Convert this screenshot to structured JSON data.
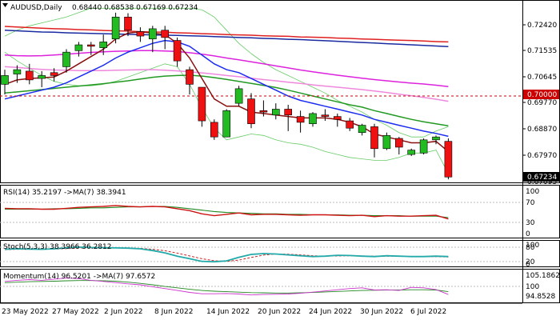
{
  "colors": {
    "up": "#22bb22",
    "down": "#ee1111",
    "ma_red": "#e02020",
    "ma_blue": "#1a2aa0",
    "ma_magenta": "#dd22dd",
    "ma_pink": "#ee88dd",
    "ma_green": "#229922",
    "ma_dkred": "#8a1010",
    "ma_blue2": "#1c2cf0",
    "band": "#66cc66",
    "level_line": "#cc0000",
    "rsi": "#cc1111",
    "rsi_ma": "#228822",
    "stoch_k": "#22aaaa",
    "stoch_d": "#cc2222",
    "mom": "#cc33cc",
    "mom_ma": "#228822"
  },
  "header": {
    "symbol": "AUDUSD,Daily",
    "ohlc": "0.68440 0.68538 0.67169 0.67234"
  },
  "price_axis": {
    "ticks": [
      "0.72420",
      "0.71535",
      "0.70645",
      "0.69770",
      "0.68870",
      "0.67970"
    ],
    "partial_tick": "0.67095",
    "level_label": "0.70000",
    "last_label": "0.67234"
  },
  "rsi_panel": {
    "title": "RSI(14) 35.2197  ->MA(7) 38.3941",
    "ticks": [
      "100",
      "70",
      "30",
      "0"
    ]
  },
  "stoch_panel": {
    "title": "Stoch(5,3,3) 38.3966 36.2812",
    "ticks": [
      "100",
      "80",
      "20",
      "0"
    ]
  },
  "mom_panel": {
    "title": "Momentum(14) 96.5201  ->MA(7) 97.6572",
    "ticks": [
      "105.1862",
      "100",
      "94.8528"
    ]
  },
  "x_axis": {
    "labels": [
      "23 May 2022",
      "27 May 2022",
      "2 Jun 2022",
      "8 Jun 2022",
      "14 Jun 2022",
      "20 Jun 2022",
      "24 Jun 2022",
      "30 Jun 2022",
      "6 Jul 2022"
    ]
  },
  "chart_data": {
    "type": "candlestick",
    "title": "AUDUSD,Daily",
    "ylim": [
      0.671,
      0.729
    ],
    "level": 0.7,
    "candles": [
      {
        "o": 0.704,
        "h": 0.709,
        "l": 0.7005,
        "c": 0.707
      },
      {
        "o": 0.7075,
        "h": 0.7105,
        "l": 0.7045,
        "c": 0.709
      },
      {
        "o": 0.7085,
        "h": 0.711,
        "l": 0.704,
        "c": 0.7055
      },
      {
        "o": 0.706,
        "h": 0.7085,
        "l": 0.703,
        "c": 0.707
      },
      {
        "o": 0.708,
        "h": 0.7095,
        "l": 0.705,
        "c": 0.707
      },
      {
        "o": 0.71,
        "h": 0.716,
        "l": 0.708,
        "c": 0.715
      },
      {
        "o": 0.7155,
        "h": 0.7185,
        "l": 0.7135,
        "c": 0.7175
      },
      {
        "o": 0.7175,
        "h": 0.7185,
        "l": 0.714,
        "c": 0.717
      },
      {
        "o": 0.7165,
        "h": 0.721,
        "l": 0.714,
        "c": 0.7185
      },
      {
        "o": 0.7195,
        "h": 0.7285,
        "l": 0.718,
        "c": 0.727
      },
      {
        "o": 0.727,
        "h": 0.7283,
        "l": 0.7205,
        "c": 0.7225
      },
      {
        "o": 0.722,
        "h": 0.7235,
        "l": 0.7185,
        "c": 0.7205
      },
      {
        "o": 0.7195,
        "h": 0.724,
        "l": 0.715,
        "c": 0.723
      },
      {
        "o": 0.7225,
        "h": 0.724,
        "l": 0.716,
        "c": 0.72
      },
      {
        "o": 0.719,
        "h": 0.72,
        "l": 0.71,
        "c": 0.712
      },
      {
        "o": 0.709,
        "h": 0.71,
        "l": 0.7005,
        "c": 0.704
      },
      {
        "o": 0.703,
        "h": 0.703,
        "l": 0.6895,
        "c": 0.6915
      },
      {
        "o": 0.691,
        "h": 0.692,
        "l": 0.685,
        "c": 0.686
      },
      {
        "o": 0.686,
        "h": 0.6955,
        "l": 0.686,
        "c": 0.695
      },
      {
        "o": 0.6975,
        "h": 0.7035,
        "l": 0.6965,
        "c": 0.7025
      },
      {
        "o": 0.699,
        "h": 0.701,
        "l": 0.689,
        "c": 0.6905
      },
      {
        "o": 0.695,
        "h": 0.6985,
        "l": 0.693,
        "c": 0.6945
      },
      {
        "o": 0.6935,
        "h": 0.6975,
        "l": 0.692,
        "c": 0.6955
      },
      {
        "o": 0.6955,
        "h": 0.697,
        "l": 0.688,
        "c": 0.6935
      },
      {
        "o": 0.693,
        "h": 0.695,
        "l": 0.6875,
        "c": 0.691
      },
      {
        "o": 0.6905,
        "h": 0.6945,
        "l": 0.6895,
        "c": 0.694
      },
      {
        "o": 0.6935,
        "h": 0.6955,
        "l": 0.6915,
        "c": 0.693
      },
      {
        "o": 0.693,
        "h": 0.694,
        "l": 0.6895,
        "c": 0.692
      },
      {
        "o": 0.6915,
        "h": 0.6925,
        "l": 0.688,
        "c": 0.689
      },
      {
        "o": 0.6875,
        "h": 0.6905,
        "l": 0.6865,
        "c": 0.69
      },
      {
        "o": 0.6895,
        "h": 0.6905,
        "l": 0.679,
        "c": 0.682
      },
      {
        "o": 0.682,
        "h": 0.6875,
        "l": 0.6815,
        "c": 0.6865
      },
      {
        "o": 0.6855,
        "h": 0.686,
        "l": 0.68,
        "c": 0.6825
      },
      {
        "o": 0.68,
        "h": 0.682,
        "l": 0.6795,
        "c": 0.6815
      },
      {
        "o": 0.6805,
        "h": 0.6855,
        "l": 0.68,
        "c": 0.685
      },
      {
        "o": 0.685,
        "h": 0.6865,
        "l": 0.6835,
        "c": 0.686
      },
      {
        "o": 0.6845,
        "h": 0.6855,
        "l": 0.6715,
        "c": 0.6723
      }
    ],
    "moving_averages": [
      {
        "color_key": "ma_red",
        "values": [
          0.7238,
          0.7236,
          0.7234,
          0.7232,
          0.723,
          0.7229,
          0.7227,
          0.7226,
          0.7224,
          0.7223,
          0.7222,
          0.722,
          0.7219,
          0.7218,
          0.7216,
          0.7215,
          0.7213,
          0.7212,
          0.721,
          0.7209,
          0.7208,
          0.7206,
          0.7205,
          0.7204,
          0.7202,
          0.7201,
          0.72,
          0.7198,
          0.7197,
          0.7195,
          0.7194,
          0.7192,
          0.7191,
          0.719,
          0.7188,
          0.7186,
          0.7185
        ]
      },
      {
        "color_key": "ma_blue",
        "values": [
          0.7225,
          0.7223,
          0.7221,
          0.7219,
          0.7218,
          0.7216,
          0.7215,
          0.7214,
          0.7213,
          0.7212,
          0.7211,
          0.721,
          0.7209,
          0.7208,
          0.7207,
          0.7206,
          0.7205,
          0.7203,
          0.7202,
          0.72,
          0.7199,
          0.7197,
          0.7196,
          0.7194,
          0.7193,
          0.7191,
          0.7189,
          0.7187,
          0.7185,
          0.7183,
          0.7181,
          0.7179,
          0.7177,
          0.7175,
          0.7173,
          0.7171,
          0.7169
        ]
      },
      {
        "color_key": "ma_magenta",
        "values": [
          0.714,
          0.7138,
          0.7137,
          0.7138,
          0.714,
          0.7143,
          0.7146,
          0.7149,
          0.7151,
          0.7153,
          0.7154,
          0.7155,
          0.7155,
          0.7154,
          0.7152,
          0.7148,
          0.7143,
          0.7137,
          0.713,
          0.7124,
          0.7117,
          0.711,
          0.7103,
          0.7096,
          0.7089,
          0.7083,
          0.7077,
          0.7071,
          0.7066,
          0.7061,
          0.7056,
          0.7052,
          0.7048,
          0.7044,
          0.7041,
          0.7037,
          0.7032
        ]
      },
      {
        "color_key": "ma_pink",
        "values": [
          0.71,
          0.7098,
          0.7094,
          0.7091,
          0.7089,
          0.7088,
          0.7087,
          0.7087,
          0.7087,
          0.7088,
          0.7089,
          0.709,
          0.709,
          0.7088,
          0.7086,
          0.7083,
          0.7079,
          0.7075,
          0.707,
          0.7066,
          0.7061,
          0.7056,
          0.7052,
          0.7047,
          0.7043,
          0.7038,
          0.7034,
          0.703,
          0.7026,
          0.7022,
          0.7017,
          0.7012,
          0.7006,
          0.7001,
          0.6995,
          0.6989,
          0.6982
        ]
      },
      {
        "color_key": "ma_green",
        "values": [
          0.701,
          0.7014,
          0.7018,
          0.7022,
          0.7026,
          0.703,
          0.7034,
          0.7038,
          0.7042,
          0.7047,
          0.7052,
          0.7058,
          0.7064,
          0.7068,
          0.707,
          0.7071,
          0.7068,
          0.7063,
          0.7057,
          0.705,
          0.7043,
          0.7036,
          0.7029,
          0.702,
          0.701,
          0.7,
          0.699,
          0.698,
          0.697,
          0.6962,
          0.695,
          0.694,
          0.693,
          0.692,
          0.6912,
          0.6905,
          0.6898
        ]
      },
      {
        "color_key": "ma_dkred",
        "values": [
          0.704,
          0.7055,
          0.706,
          0.7062,
          0.7065,
          0.7085,
          0.711,
          0.7135,
          0.716,
          0.7195,
          0.7215,
          0.722,
          0.7215,
          0.721,
          0.718,
          0.713,
          0.706,
          0.699,
          0.6965,
          0.6965,
          0.6945,
          0.694,
          0.6935,
          0.693,
          0.6925,
          0.6925,
          0.6925,
          0.692,
          0.691,
          0.6895,
          0.687,
          0.686,
          0.685,
          0.684,
          0.684,
          0.6845,
          0.681
        ]
      },
      {
        "color_key": "ma_blue2",
        "values": [
          0.699,
          0.7,
          0.701,
          0.702,
          0.703,
          0.7045,
          0.7065,
          0.7085,
          0.7105,
          0.713,
          0.715,
          0.7165,
          0.718,
          0.719,
          0.7185,
          0.717,
          0.714,
          0.711,
          0.709,
          0.708,
          0.706,
          0.704,
          0.702,
          0.7,
          0.6985,
          0.6975,
          0.6965,
          0.6955,
          0.6945,
          0.6935,
          0.692,
          0.691,
          0.69,
          0.689,
          0.688,
          0.6872,
          0.6862
        ]
      }
    ],
    "bands": [
      {
        "color_key": "band",
        "values": [
          0.7205,
          0.7225,
          0.724,
          0.725,
          0.726,
          0.727,
          0.7285,
          0.73,
          0.73,
          0.73,
          0.73,
          0.73,
          0.73,
          0.73,
          0.73,
          0.73,
          0.7295,
          0.727,
          0.7225,
          0.718,
          0.7145,
          0.7115,
          0.709,
          0.707,
          0.705,
          0.703,
          0.701,
          0.6985,
          0.6965,
          0.6945,
          0.692,
          0.69,
          0.6875,
          0.686,
          0.686,
          0.688,
          0.6895
        ]
      },
      {
        "color_key": "band",
        "values": [
          0.715,
          0.712,
          0.7095,
          0.707,
          0.705,
          0.704,
          0.7035,
          0.7035,
          0.704,
          0.705,
          0.7065,
          0.708,
          0.7095,
          0.711,
          0.71,
          0.704,
          0.696,
          0.689,
          0.685,
          0.686,
          0.687,
          0.6865,
          0.685,
          0.684,
          0.6835,
          0.6825,
          0.681,
          0.68,
          0.679,
          0.6785,
          0.678,
          0.678,
          0.679,
          0.6805,
          0.6805,
          0.6815,
          0.6735
        ]
      }
    ],
    "rsi": {
      "value": 35.2197,
      "ma": 38.3941,
      "ylim": [
        0,
        100
      ],
      "line": [
        58,
        57,
        57,
        56,
        56,
        58,
        60,
        61,
        62,
        64,
        62,
        61,
        62,
        61,
        57,
        53,
        46,
        42,
        45,
        48,
        44,
        45,
        45,
        44,
        43,
        44,
        44,
        43,
        42,
        43,
        40,
        42,
        41,
        41,
        42,
        43,
        35
      ],
      "ma_line": [
        56,
        56,
        56,
        56,
        57,
        57,
        58,
        59,
        59,
        60,
        61,
        61,
        62,
        62,
        60,
        57,
        54,
        51,
        49,
        48,
        47,
        46,
        46,
        45,
        45,
        44,
        44,
        44,
        43,
        43,
        42,
        42,
        42,
        41,
        41,
        41,
        38
      ]
    },
    "stoch": {
      "k": 38.3966,
      "d": 36.2812,
      "ylim": [
        0,
        100
      ],
      "k_line": [
        72,
        74,
        73,
        72,
        74,
        78,
        82,
        80,
        79,
        78,
        77,
        74,
        66,
        55,
        40,
        28,
        16,
        14,
        18,
        35,
        48,
        52,
        50,
        46,
        42,
        38,
        40,
        44,
        43,
        40,
        38,
        42,
        40,
        38,
        38,
        40,
        38
      ],
      "d_line": [
        70,
        72,
        72,
        73,
        73,
        75,
        78,
        80,
        80,
        79,
        78,
        76,
        72,
        65,
        54,
        41,
        28,
        19,
        16,
        22,
        34,
        45,
        50,
        49,
        46,
        42,
        40,
        41,
        42,
        41,
        40,
        40,
        40,
        39,
        38,
        38,
        36
      ]
    },
    "momentum": {
      "value": 96.5201,
      "ma": 97.6572,
      "ylim": [
        93.5,
        106.0
      ],
      "line": [
        102.0,
        102.5,
        102.8,
        102.5,
        103.0,
        103.5,
        103.2,
        102.5,
        102.0,
        101.5,
        101.0,
        100.6,
        99.8,
        99.0,
        98.2,
        97.4,
        96.8,
        96.8,
        96.9,
        96.7,
        96.3,
        96.5,
        96.6,
        96.7,
        97.0,
        97.5,
        98.0,
        98.5,
        99.0,
        99.3,
        98.4,
        98.5,
        98.2,
        99.5,
        99.3,
        98.6,
        96.5
      ],
      "ma_line": [
        101.5,
        101.7,
        101.9,
        102.0,
        102.1,
        102.3,
        102.4,
        102.4,
        102.3,
        102.1,
        101.7,
        101.2,
        100.6,
        99.9,
        99.3,
        98.7,
        98.2,
        97.9,
        97.7,
        97.5,
        97.3,
        97.2,
        97.1,
        97.1,
        97.2,
        97.4,
        97.6,
        97.8,
        98.0,
        98.2,
        98.3,
        98.4,
        98.4,
        98.5,
        98.5,
        98.4,
        97.7
      ]
    }
  }
}
